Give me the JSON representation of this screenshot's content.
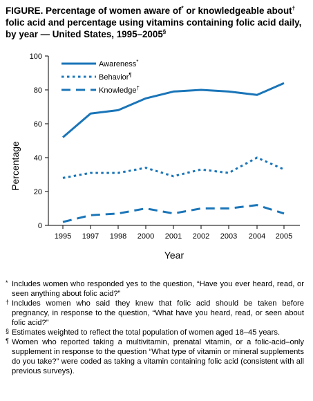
{
  "title": {
    "part1": "FIGURE. Percentage of women aware of",
    "mark1": "*",
    "part2": " or knowledgeable about",
    "mark2": "†",
    "part3": " folic acid and percentage using vitamins containing folic acid daily, by year — United States, 1995–2005",
    "mark3": "§"
  },
  "chart_data": {
    "type": "line",
    "xlabel": "Year",
    "ylabel": "Percentage",
    "categories": [
      "1995",
      "1997",
      "1998",
      "2000",
      "2001",
      "2002",
      "2003",
      "2004",
      "2005"
    ],
    "ylim": [
      0,
      100
    ],
    "yticks": [
      "0",
      "20",
      "40",
      "60",
      "80",
      "100"
    ],
    "series": [
      {
        "name": "Awareness",
        "mark": "*",
        "style": "solid",
        "values": [
          52,
          66,
          68,
          75,
          79,
          80,
          79,
          77,
          84
        ]
      },
      {
        "name": "Behavior",
        "mark": "¶",
        "style": "dotted",
        "values": [
          28,
          31,
          31,
          34,
          29,
          33,
          31,
          40,
          33
        ]
      },
      {
        "name": "Knowledge",
        "mark": "†",
        "style": "dashed",
        "values": [
          2,
          6,
          7,
          10,
          7,
          10,
          10,
          12,
          7
        ]
      }
    ],
    "color": "#1a75b8",
    "legend": "top-left",
    "grid": false
  },
  "notes": [
    {
      "sym": "*",
      "text": "Includes women who responded yes to the question, “Have you ever heard, read, or seen anything about folic acid?”"
    },
    {
      "sym": "†",
      "text": "Includes women who said they knew that folic acid should be taken before pregnancy, in response to the question, “What have you heard, read, or seen about folic acid?”"
    },
    {
      "sym": "§",
      "text": "Estimates weighted to reflect the total population of women aged 18–45 years."
    },
    {
      "sym": "¶",
      "text": "Women who reported taking a multivitamin, prenatal vitamin, or a folic-acid–only supplement in response to the question “What type of vitamin or mineral supplements do you take?” were coded as taking a vitamin containing folic acid (consistent with all previous surveys)."
    }
  ]
}
